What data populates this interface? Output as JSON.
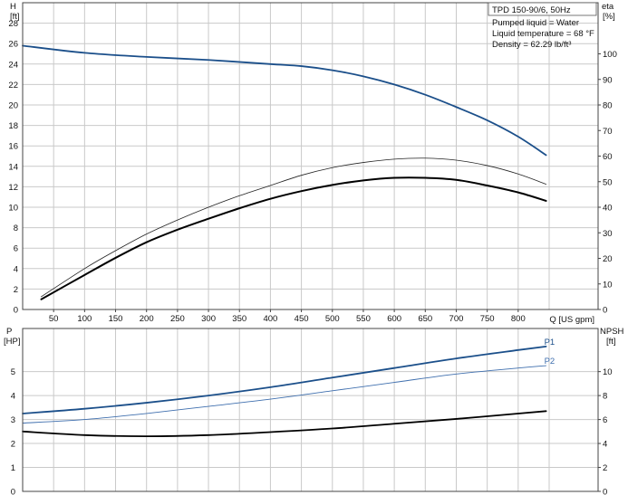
{
  "colors": {
    "grid": "#c9c9c9",
    "axis": "#444444",
    "head_curve": "#1b4f8a",
    "eta_black": "#000000",
    "eta_thin": "#222222",
    "p1": "#1b4f8a",
    "p2": "#3f6fae",
    "npsh": "#000000"
  },
  "legend_box": {
    "title": "TPD 150-90/6, 50Hz",
    "line1": "Pumped liquid = Water",
    "line2": "Liquid temperature = 68 °F",
    "line3": "Density = 62.29 lb/ft³"
  },
  "chart_data": [
    {
      "type": "line",
      "name": "performance",
      "xlabel": "Q [US gpm]",
      "ylabel_left": [
        "H",
        "[ft]"
      ],
      "ylabel_right": [
        "eta",
        "[%]"
      ],
      "xlim": [
        0,
        929
      ],
      "x_ticks": [
        50,
        100,
        150,
        200,
        250,
        300,
        350,
        400,
        450,
        500,
        550,
        600,
        650,
        700,
        750,
        800
      ],
      "ylim_left": [
        0,
        30
      ],
      "y_ticks_left": [
        0,
        2,
        4,
        6,
        8,
        10,
        12,
        14,
        16,
        18,
        20,
        22,
        24,
        26,
        28
      ],
      "ylim_right": [
        0,
        120
      ],
      "y_ticks_right": [
        0,
        10,
        20,
        30,
        40,
        50,
        60,
        70,
        80,
        90,
        100
      ],
      "grid": true,
      "series": [
        {
          "key": "head",
          "axis": "left",
          "x": [
            0,
            100,
            200,
            300,
            400,
            450,
            500,
            550,
            600,
            650,
            700,
            750,
            800,
            845
          ],
          "y": [
            25.8,
            25.1,
            24.7,
            24.4,
            24.0,
            23.8,
            23.4,
            22.8,
            22.0,
            21.0,
            19.8,
            18.5,
            16.9,
            15.1
          ]
        },
        {
          "key": "eta_thin",
          "axis": "right",
          "x": [
            30,
            100,
            150,
            200,
            250,
            300,
            350,
            400,
            450,
            500,
            550,
            600,
            650,
            700,
            750,
            800,
            845
          ],
          "y": [
            5,
            16,
            23,
            29.5,
            35,
            40,
            44.5,
            48.5,
            52.5,
            55.5,
            57.5,
            58.8,
            59.2,
            58.4,
            56.3,
            53,
            49
          ]
        },
        {
          "key": "eta_bold",
          "axis": "right",
          "x": [
            30,
            100,
            150,
            200,
            250,
            300,
            350,
            400,
            450,
            500,
            550,
            600,
            650,
            700,
            750,
            800,
            845
          ],
          "y": [
            4,
            13.5,
            20.2,
            26.3,
            31.2,
            35.5,
            39.6,
            43.3,
            46.3,
            48.7,
            50.5,
            51.5,
            51.5,
            50.7,
            48.5,
            45.8,
            42.5
          ]
        }
      ]
    },
    {
      "type": "line",
      "name": "power-npsh",
      "xlabel": "",
      "ylabel_left": [
        "P",
        "[HP]"
      ],
      "ylabel_right": [
        "NPSH",
        "[ft]"
      ],
      "xlim": [
        0,
        929
      ],
      "ylim_left": [
        0,
        6.8
      ],
      "y_ticks_left": [
        0,
        1,
        2,
        3,
        4,
        5
      ],
      "ylim_right": [
        0,
        13.6
      ],
      "y_ticks_right": [
        0,
        2,
        4,
        6,
        8,
        10
      ],
      "grid": true,
      "series": [
        {
          "key": "p1",
          "name": "P1",
          "axis": "left",
          "x": [
            0,
            100,
            200,
            300,
            400,
            500,
            600,
            700,
            800,
            845
          ],
          "y": [
            3.25,
            3.45,
            3.7,
            4.0,
            4.35,
            4.75,
            5.15,
            5.55,
            5.9,
            6.05
          ]
        },
        {
          "key": "p2",
          "name": "P2",
          "axis": "left",
          "x": [
            0,
            100,
            200,
            300,
            400,
            500,
            600,
            700,
            800,
            845
          ],
          "y": [
            2.85,
            3.0,
            3.25,
            3.55,
            3.85,
            4.2,
            4.55,
            4.9,
            5.15,
            5.25
          ]
        },
        {
          "key": "npsh",
          "axis": "right",
          "x": [
            0,
            100,
            200,
            300,
            400,
            500,
            600,
            700,
            800,
            845
          ],
          "y": [
            5.0,
            4.7,
            4.6,
            4.7,
            4.95,
            5.25,
            5.65,
            6.05,
            6.5,
            6.7
          ]
        }
      ]
    }
  ]
}
